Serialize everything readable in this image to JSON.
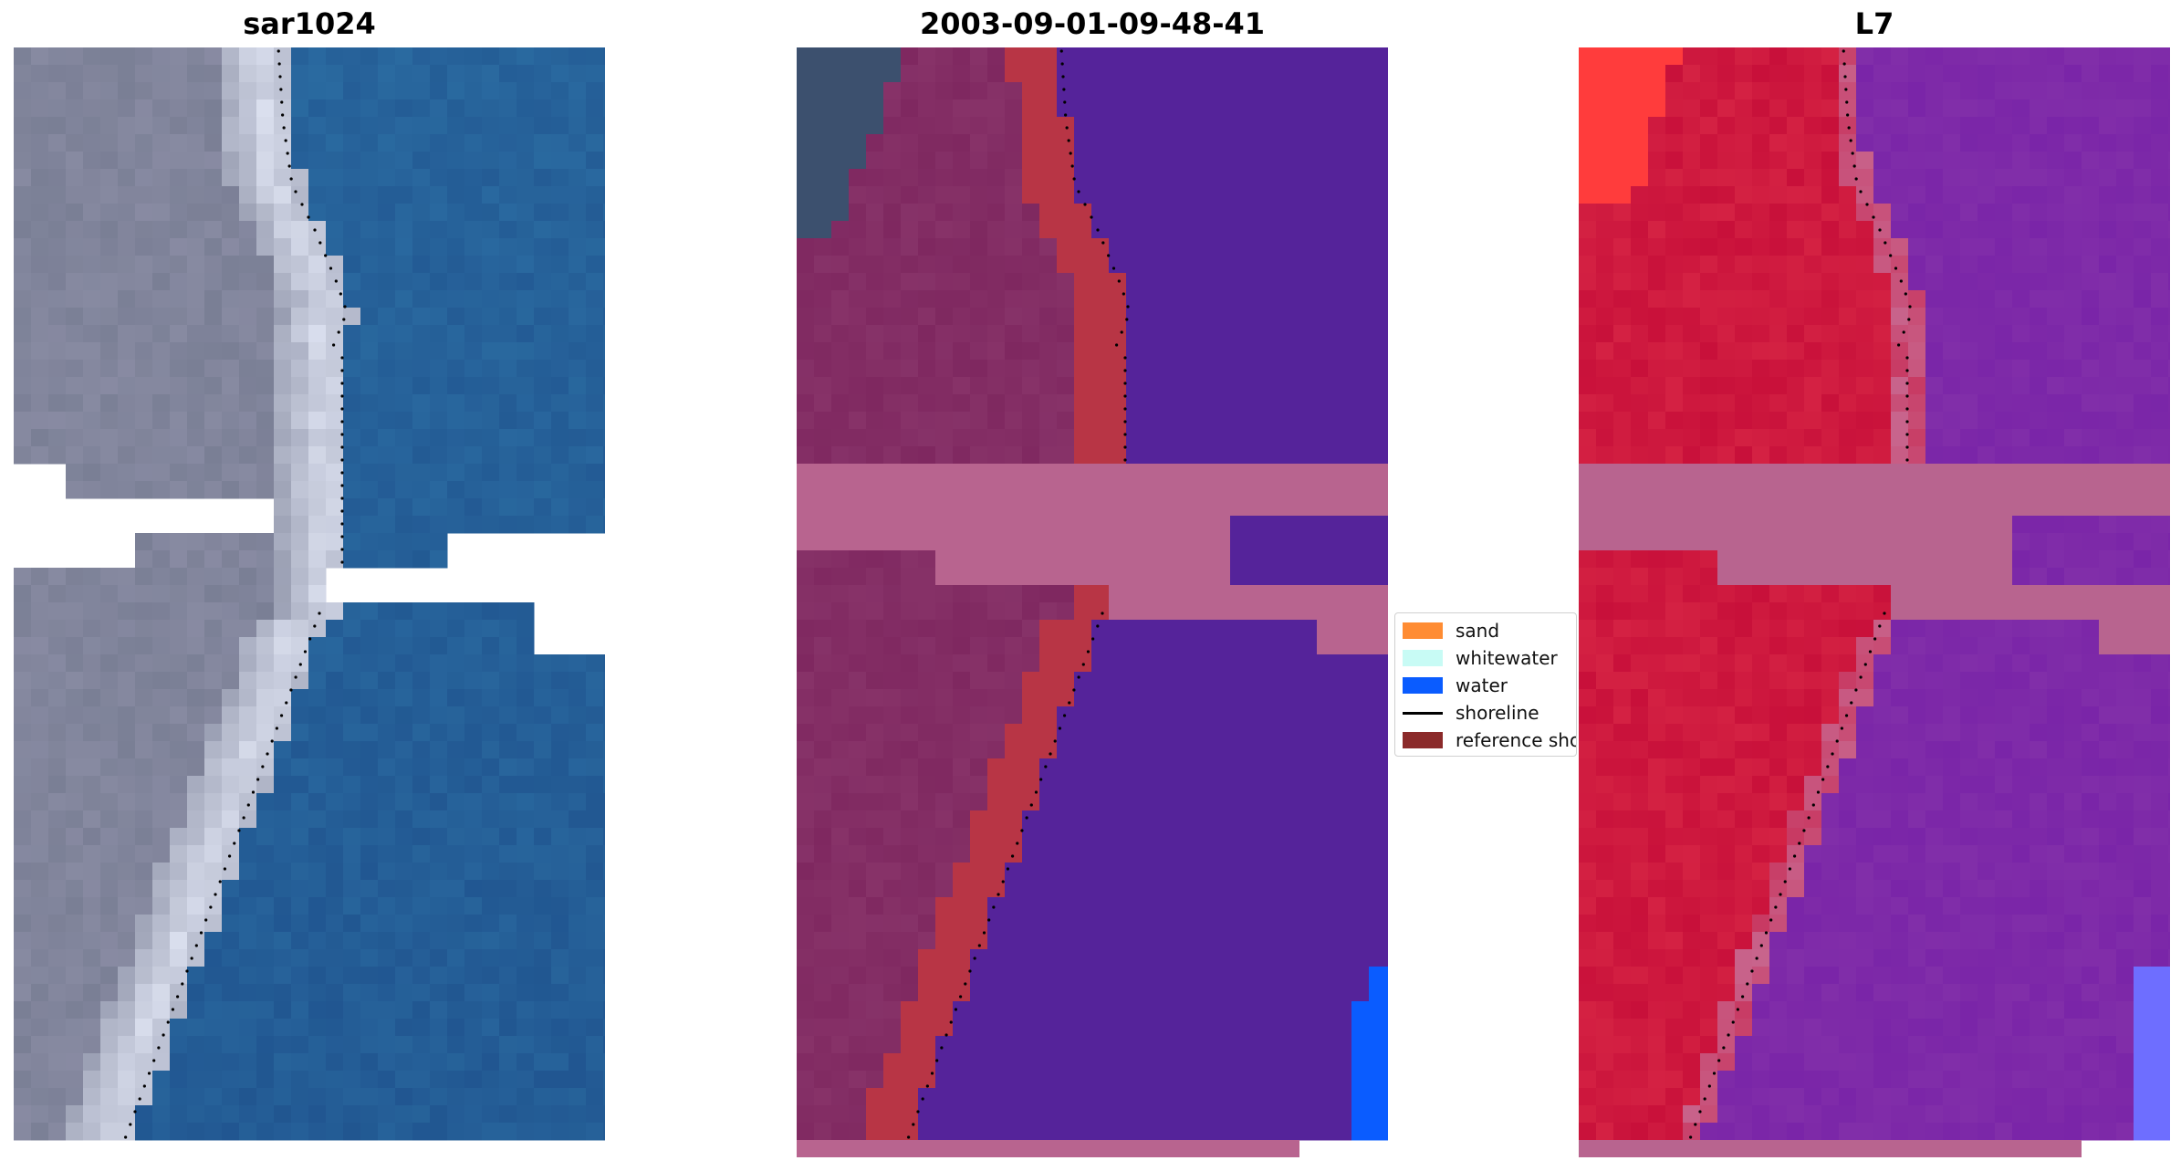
{
  "panels": [
    {
      "id": "rgb",
      "title": "sar1024",
      "style": "rgb"
    },
    {
      "id": "classified",
      "title": "2003-09-01-09-48-41",
      "style": "classified"
    },
    {
      "id": "index",
      "title": "L7",
      "style": "index"
    }
  ],
  "legend": {
    "items": [
      {
        "label": "sand",
        "color": "#ff8c33",
        "kind": "patch"
      },
      {
        "label": "whitewater",
        "color": "#c8fbf5",
        "kind": "patch"
      },
      {
        "label": "water",
        "color": "#0a5cff",
        "kind": "patch"
      },
      {
        "label": "shoreline",
        "color": "#000000",
        "kind": "line"
      },
      {
        "label": "reference shoreline buffer",
        "color": "#8b2a2a",
        "kind": "patch"
      }
    ]
  },
  "colors": {
    "cloud_mask": "#b8648f",
    "no_data": "#ffffff",
    "land_rgb": "#7a7f95",
    "water_rgb": "#2a6aa0",
    "land_classified": "#7f2860",
    "water_classified": "#55239a",
    "buffer_classified": "#b83545",
    "water_blue": "#0a5cff",
    "land_index": "#c8103a",
    "water_index": "#7a25a8"
  }
}
